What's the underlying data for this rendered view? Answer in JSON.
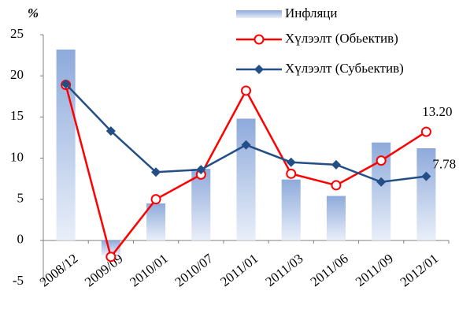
{
  "chart_data": {
    "type": "bar_line",
    "y_label": "%",
    "categories": [
      "2008/12",
      "2009/09",
      "2010/01",
      "2010/07",
      "2011/01",
      "2011/03",
      "2011/06",
      "2011/09",
      "2012/01"
    ],
    "series": [
      {
        "name": "Инфляци",
        "type": "bar",
        "color": "#8eaadb",
        "values": [
          23.2,
          -1.8,
          4.5,
          8.7,
          14.8,
          7.4,
          5.4,
          11.9,
          11.2
        ]
      },
      {
        "name": "Хүлээлт (Обьектив)",
        "type": "line",
        "marker": "circle",
        "color": "#ff0000",
        "values": [
          18.9,
          -2.0,
          5.0,
          8.0,
          18.2,
          8.1,
          6.7,
          9.7,
          13.2
        ],
        "value_labels": [
          null,
          null,
          null,
          null,
          null,
          null,
          null,
          null,
          "13.20"
        ]
      },
      {
        "name": "Хүлээлт (Субьектив)",
        "type": "line",
        "marker": "diamond",
        "color": "#234e86",
        "values": [
          19.0,
          13.3,
          8.3,
          8.6,
          11.6,
          9.5,
          9.2,
          7.1,
          7.78
        ],
        "value_labels": [
          null,
          null,
          null,
          null,
          null,
          null,
          null,
          null,
          "7.78"
        ]
      }
    ],
    "ylim": [
      -5,
      25
    ],
    "yticks": [
      -5,
      0,
      5,
      10,
      15,
      20,
      25
    ]
  }
}
